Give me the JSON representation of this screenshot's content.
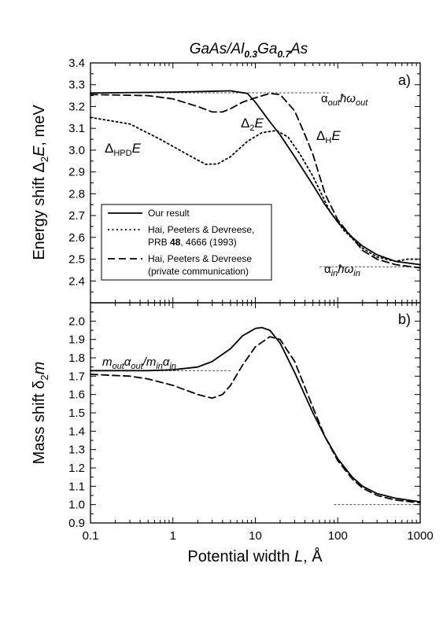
{
  "title_parts": {
    "t1": "GaAs/Al",
    "t2": "0.3",
    "t3": "Ga",
    "t4": "0.7",
    "t5": "As"
  },
  "colors": {
    "line": "#000000",
    "reference": "#555555",
    "background": "#ffffff"
  },
  "chart_data": [
    {
      "panel": "a)",
      "type": "line",
      "xscale": "log",
      "xlim": [
        0.1,
        1000
      ],
      "ylim": [
        2.3,
        3.4
      ],
      "x_ticks": [
        "0.1",
        "1",
        "10",
        "100",
        "1000"
      ],
      "y_ticks": [
        "2.4",
        "2.5",
        "2.6",
        "2.7",
        "2.8",
        "2.9",
        "3.0",
        "3.1",
        "3.2",
        "3.3",
        "3.4"
      ],
      "ylabel_parts": {
        "p1": "Energy shift ",
        "p2": "Δ",
        "p3": "2",
        "p4": "E",
        "p5": ", meV"
      },
      "series": [
        {
          "name": "Our result",
          "style": "solid",
          "x": [
            0.1,
            1,
            3,
            5,
            8,
            10,
            15,
            20,
            30,
            50,
            70,
            100,
            150,
            200,
            300,
            500,
            1000
          ],
          "y": [
            3.262,
            3.266,
            3.27,
            3.272,
            3.26,
            3.22,
            3.13,
            3.07,
            2.97,
            2.84,
            2.75,
            2.67,
            2.6,
            2.56,
            2.52,
            2.49,
            2.475
          ]
        },
        {
          "name": "Hai, Peeters & Devreese, PRB 48, 4666 (1993)",
          "style": "dotted",
          "x": [
            0.1,
            0.3,
            0.7,
            1.5,
            2.5,
            3.5,
            5,
            8,
            12,
            18,
            25,
            35,
            50,
            80,
            120,
            200,
            300,
            500,
            700,
            1000
          ],
          "y": [
            3.15,
            3.12,
            3.05,
            2.98,
            2.935,
            2.937,
            2.97,
            3.04,
            3.08,
            3.09,
            3.06,
            2.98,
            2.88,
            2.72,
            2.63,
            2.55,
            2.51,
            2.49,
            2.5,
            2.5
          ]
        },
        {
          "name": "Hai, Peeters & Devreese (private communication)",
          "style": "dashed",
          "x": [
            0.1,
            0.5,
            1,
            2,
            3,
            4,
            5,
            7,
            10,
            15,
            20,
            30,
            40,
            50,
            70,
            100,
            200,
            300,
            500,
            1000
          ],
          "y": [
            3.255,
            3.25,
            3.235,
            3.2,
            3.175,
            3.175,
            3.19,
            3.22,
            3.24,
            3.26,
            3.255,
            3.18,
            3.07,
            2.98,
            2.8,
            2.68,
            2.54,
            2.5,
            2.475,
            2.46
          ]
        }
      ],
      "reference_lines": [
        {
          "x_from": 0.1,
          "x_to": 80,
          "y": 3.263
        },
        {
          "x_from": 60,
          "x_to": 1000,
          "y": 2.465
        }
      ],
      "annotations": {
        "alpha_out": {
          "a": "α",
          "b": "out",
          "c": "ħω",
          "d": "out"
        },
        "alpha_in": {
          "a": "α",
          "b": "in",
          "c": "ħω",
          "d": "in"
        },
        "d2e": {
          "a": "Δ",
          "b": "2",
          "c": "E"
        },
        "dhe": {
          "a": "Δ",
          "b": "H",
          "c": "E"
        },
        "dhpde": {
          "a": "Δ",
          "b": "HPD",
          "c": "E"
        }
      },
      "legend": {
        "position": "lower-left",
        "entries": [
          {
            "style": "solid",
            "lines": [
              "Our result"
            ]
          },
          {
            "style": "dotted",
            "line1": "Hai, Peeters & Devreese,",
            "line2a": "PRB ",
            "line2b": "48",
            "line2c": ", 4666 (1993)"
          },
          {
            "style": "dashed",
            "lines": [
              "Hai, Peeters & Devreese",
              "(private communication)"
            ]
          }
        ]
      }
    },
    {
      "panel": "b)",
      "type": "line",
      "xscale": "log",
      "xlim": [
        0.1,
        1000
      ],
      "ylim": [
        0.9,
        2.1
      ],
      "x_ticks": [
        "0.1",
        "1",
        "10",
        "100",
        "1000"
      ],
      "y_ticks": [
        "0.9",
        "1.0",
        "1.1",
        "1.2",
        "1.3",
        "1.4",
        "1.5",
        "1.6",
        "1.7",
        "1.8",
        "1.9",
        "2.0"
      ],
      "xlabel_parts": {
        "p1": "Potential width ",
        "p2": "L",
        "p3": ", Å"
      },
      "ylabel_parts": {
        "p1": "Mass shift ",
        "p2": "δ",
        "p3": "2",
        "p4": "m"
      },
      "series": [
        {
          "name": "Our result",
          "style": "solid",
          "x": [
            0.1,
            0.5,
            1,
            2,
            3,
            5,
            7,
            10,
            12,
            15,
            20,
            30,
            50,
            70,
            100,
            150,
            200,
            300,
            500,
            1000
          ],
          "y": [
            1.73,
            1.73,
            1.735,
            1.75,
            1.78,
            1.85,
            1.92,
            1.96,
            1.965,
            1.95,
            1.88,
            1.72,
            1.5,
            1.37,
            1.25,
            1.15,
            1.1,
            1.06,
            1.035,
            1.015
          ]
        },
        {
          "name": "Hai, Peeters & Devreese (private communication)",
          "style": "dashed",
          "x": [
            0.1,
            0.3,
            0.5,
            1,
            2,
            3,
            4,
            5,
            7,
            10,
            15,
            20,
            30,
            50,
            70,
            100,
            150,
            200,
            300,
            500,
            1000
          ],
          "y": [
            1.71,
            1.7,
            1.685,
            1.65,
            1.6,
            1.58,
            1.6,
            1.65,
            1.76,
            1.86,
            1.915,
            1.9,
            1.78,
            1.53,
            1.37,
            1.24,
            1.14,
            1.09,
            1.05,
            1.025,
            1.01
          ]
        }
      ],
      "reference_lines": [
        {
          "x_from": 0.1,
          "x_to": 5,
          "y": 1.73
        },
        {
          "x_from": 90,
          "x_to": 1000,
          "y": 1.0
        }
      ],
      "annotations": {
        "mass_ratio": {
          "a": "m",
          "b": "out",
          "c": "α",
          "d": "out",
          "e": "/m",
          "f": "in",
          "g": "α",
          "h": "in"
        }
      }
    }
  ]
}
